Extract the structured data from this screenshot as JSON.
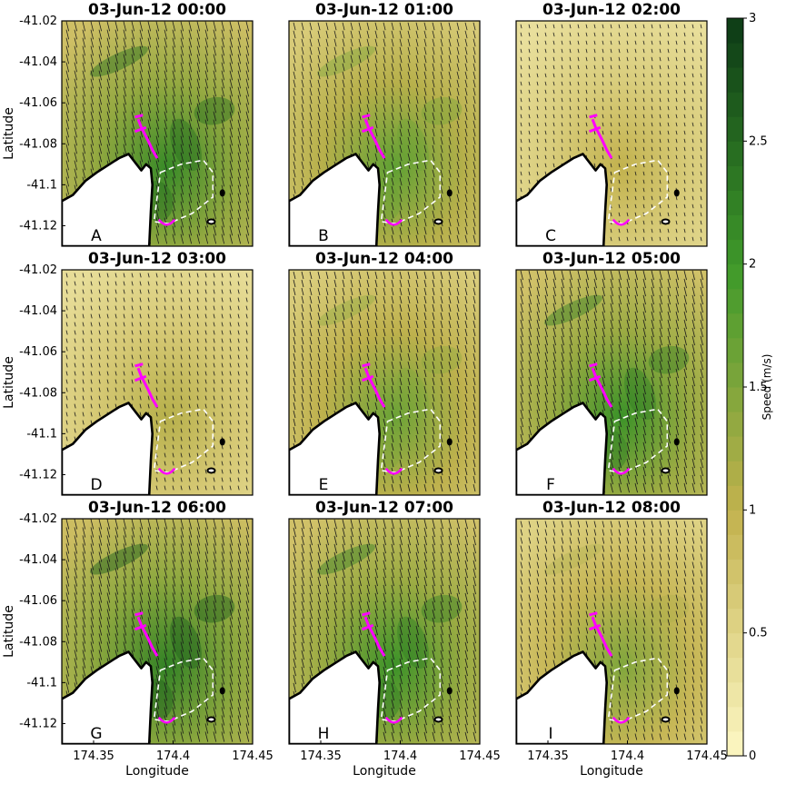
{
  "chart_data": {
    "type": "heatmap",
    "xlabel": "Longitude",
    "ylabel": "Latitude",
    "xlim": [
      174.33,
      174.45
    ],
    "ylim": [
      -41.13,
      -41.02
    ],
    "xticks": [
      "174.35",
      "174.4",
      "174.45"
    ],
    "yticks": [
      "-41.02",
      "-41.04",
      "-41.06",
      "-41.08",
      "-41.1",
      "-41.12"
    ],
    "colorbar": {
      "label": "Speed (m/s)",
      "range": [
        0,
        3
      ],
      "ticks": [
        "0",
        "0.5",
        "1",
        "1.5",
        "2",
        "2.5",
        "3"
      ],
      "color_low": "#fdf7c4",
      "color_mid": "#c3b24e",
      "color_high": "#0d3a16"
    },
    "panels": [
      {
        "title": "03-Jun-12 00:00",
        "letter": "A",
        "intensity": 0.85
      },
      {
        "title": "03-Jun-12 01:00",
        "letter": "B",
        "intensity": 0.6
      },
      {
        "title": "03-Jun-12 02:00",
        "letter": "C",
        "intensity": 0.15
      },
      {
        "title": "03-Jun-12 03:00",
        "letter": "D",
        "intensity": 0.2
      },
      {
        "title": "03-Jun-12 04:00",
        "letter": "E",
        "intensity": 0.55
      },
      {
        "title": "03-Jun-12 05:00",
        "letter": "F",
        "intensity": 0.8
      },
      {
        "title": "03-Jun-12 06:00",
        "letter": "G",
        "intensity": 0.9
      },
      {
        "title": "03-Jun-12 07:00",
        "letter": "H",
        "intensity": 0.8
      },
      {
        "title": "03-Jun-12 08:00",
        "letter": "I",
        "intensity": 0.45
      }
    ]
  }
}
